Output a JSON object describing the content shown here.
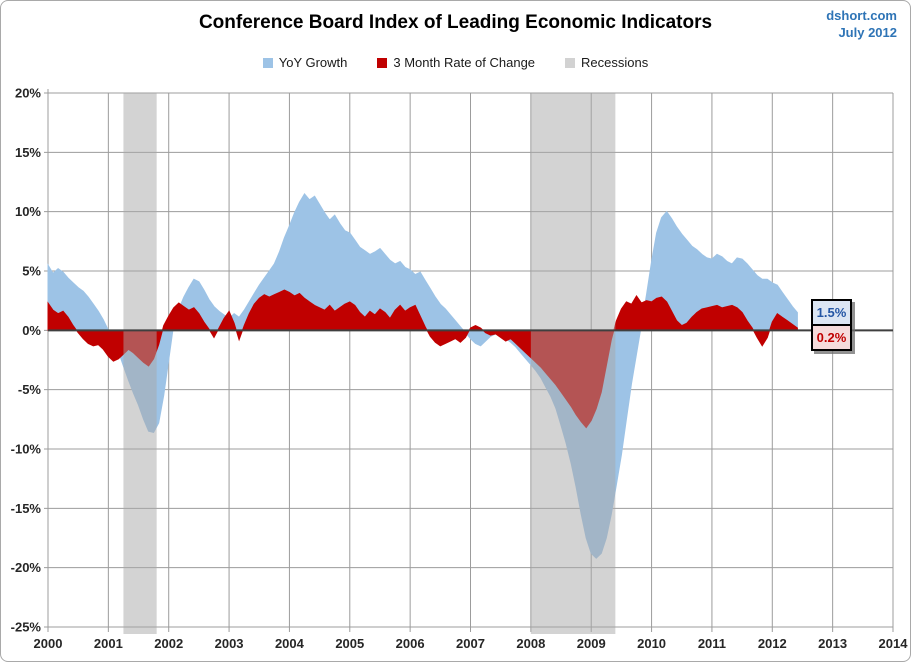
{
  "header": {
    "title": "Conference Board Index of Leading Economic Indicators",
    "source": "dshort.com",
    "date": "July 2012",
    "source_color": "#2e74b6"
  },
  "legend": [
    {
      "label": "YoY Growth",
      "color": "#9dc3e6"
    },
    {
      "label": "3 Month Rate of Change",
      "color": "#c00000"
    },
    {
      "label": "Recessions",
      "color": "#d2d2d2"
    }
  ],
  "callouts": [
    {
      "label": "1.5%",
      "text_color": "#2456a4",
      "bg_color": "#dce6f3"
    },
    {
      "label": "0.2%",
      "text_color": "#c00000",
      "bg_color": "#f5dbdb"
    }
  ],
  "chart_data": {
    "type": "area",
    "title": "Conference Board Index of Leading Economic Indicators",
    "xlabel": "",
    "ylabel": "",
    "xlim": [
      2000,
      2014
    ],
    "ylim": [
      -25,
      20
    ],
    "grid": true,
    "legend_position": "top",
    "x_start_year": 2000,
    "x_step_months": 1,
    "xtick_labels": [
      "2000",
      "2001",
      "2002",
      "2003",
      "2004",
      "2005",
      "2006",
      "2007",
      "2008",
      "2009",
      "2010",
      "2011",
      "2012",
      "2013",
      "2014"
    ],
    "ytick_values": [
      20,
      15,
      10,
      5,
      0,
      -5,
      -10,
      -15,
      -20,
      -25
    ],
    "ytick_labels": [
      "20%",
      "15%",
      "10%",
      "5%",
      "0%",
      "-5%",
      "-10%",
      "-15%",
      "-20%",
      "-25%"
    ],
    "recession_color": "rgba(168,168,168,0.5)",
    "recessions": [
      {
        "start": 2001.25,
        "end": 2001.8
      },
      {
        "start": 2008.0,
        "end": 2009.4
      }
    ],
    "series": [
      {
        "name": "YoY Growth",
        "color": "#9dc3e6",
        "end_value": 1.5,
        "values": [
          5.5,
          4.8,
          5.2,
          4.9,
          4.4,
          4.0,
          3.6,
          3.3,
          2.8,
          2.2,
          1.6,
          0.9,
          0.0,
          -0.8,
          -1.8,
          -3.0,
          -4.2,
          -5.3,
          -6.3,
          -7.5,
          -8.5,
          -8.6,
          -7.8,
          -5.5,
          -2.5,
          0.5,
          1.8,
          2.8,
          3.6,
          4.3,
          4.1,
          3.4,
          2.6,
          2.0,
          1.6,
          1.3,
          1.0,
          1.4,
          1.1,
          1.7,
          2.4,
          3.1,
          3.8,
          4.4,
          5.0,
          5.6,
          6.6,
          7.8,
          8.8,
          9.9,
          10.8,
          11.5,
          11.0,
          11.3,
          10.6,
          9.9,
          9.3,
          9.7,
          9.0,
          8.4,
          8.2,
          7.6,
          7.0,
          6.7,
          6.4,
          6.6,
          6.9,
          6.4,
          5.9,
          5.6,
          5.8,
          5.3,
          5.1,
          4.7,
          4.9,
          4.2,
          3.5,
          2.8,
          2.2,
          1.8,
          1.3,
          0.8,
          0.3,
          -0.2,
          -0.7,
          -1.1,
          -1.3,
          -0.9,
          -0.5,
          -0.3,
          -0.4,
          -0.7,
          -1.0,
          -1.4,
          -1.9,
          -2.4,
          -2.9,
          -3.4,
          -4.0,
          -4.8,
          -5.6,
          -6.6,
          -8.0,
          -9.5,
          -11.2,
          -13.2,
          -15.5,
          -17.5,
          -18.8,
          -19.2,
          -18.8,
          -17.5,
          -15.5,
          -13.0,
          -10.5,
          -7.5,
          -4.5,
          -2.0,
          0.5,
          3.0,
          5.8,
          8.2,
          9.5,
          10.0,
          9.4,
          8.7,
          8.1,
          7.6,
          7.1,
          6.8,
          6.4,
          6.1,
          6.0,
          6.4,
          6.2,
          5.8,
          5.6,
          6.1,
          6.0,
          5.6,
          5.1,
          4.6,
          4.3,
          4.3,
          4.0,
          3.8,
          3.2,
          2.6,
          2.0,
          1.5
        ]
      },
      {
        "name": "3 Month Rate of Change",
        "color": "#c00000",
        "end_value": 0.2,
        "values": [
          2.3,
          1.7,
          1.4,
          1.6,
          1.1,
          0.4,
          -0.2,
          -0.7,
          -1.1,
          -1.3,
          -1.2,
          -1.6,
          -2.2,
          -2.6,
          -2.4,
          -2.0,
          -1.6,
          -1.9,
          -2.3,
          -2.7,
          -3.0,
          -2.4,
          -1.2,
          0.4,
          1.2,
          1.9,
          2.3,
          2.0,
          1.7,
          1.9,
          1.4,
          0.7,
          0.1,
          -0.6,
          0.2,
          1.0,
          1.6,
          0.6,
          -0.8,
          0.4,
          1.4,
          2.2,
          2.7,
          3.0,
          2.8,
          3.0,
          3.2,
          3.4,
          3.2,
          2.9,
          3.1,
          2.7,
          2.4,
          2.1,
          1.9,
          1.7,
          2.1,
          1.6,
          1.9,
          2.2,
          2.4,
          2.1,
          1.5,
          1.1,
          1.6,
          1.3,
          1.8,
          1.5,
          1.0,
          1.7,
          2.1,
          1.6,
          1.9,
          2.1,
          1.2,
          0.3,
          -0.5,
          -1.0,
          -1.3,
          -1.1,
          -0.9,
          -0.7,
          -1.0,
          -0.6,
          0.2,
          0.4,
          0.2,
          -0.2,
          -0.4,
          -0.3,
          -0.6,
          -0.9,
          -0.7,
          -1.1,
          -1.5,
          -1.9,
          -2.3,
          -2.7,
          -3.1,
          -3.6,
          -4.1,
          -4.6,
          -5.2,
          -5.8,
          -6.4,
          -7.1,
          -7.7,
          -8.2,
          -7.6,
          -6.6,
          -5.2,
          -3.0,
          -0.8,
          0.8,
          1.8,
          2.4,
          2.2,
          2.9,
          2.3,
          2.5,
          2.4,
          2.7,
          2.8,
          2.4,
          1.6,
          0.8,
          0.4,
          0.6,
          1.1,
          1.5,
          1.8,
          1.9,
          2.0,
          2.1,
          1.9,
          2.0,
          2.1,
          1.9,
          1.5,
          0.8,
          0.2,
          -0.6,
          -1.3,
          -0.6,
          0.7,
          1.4,
          1.1,
          0.8,
          0.5,
          0.2
        ]
      }
    ],
    "grid_color": "#9c9c9c",
    "zero_line_color": "#3f3f3f",
    "tick_label_color": "#262626"
  }
}
